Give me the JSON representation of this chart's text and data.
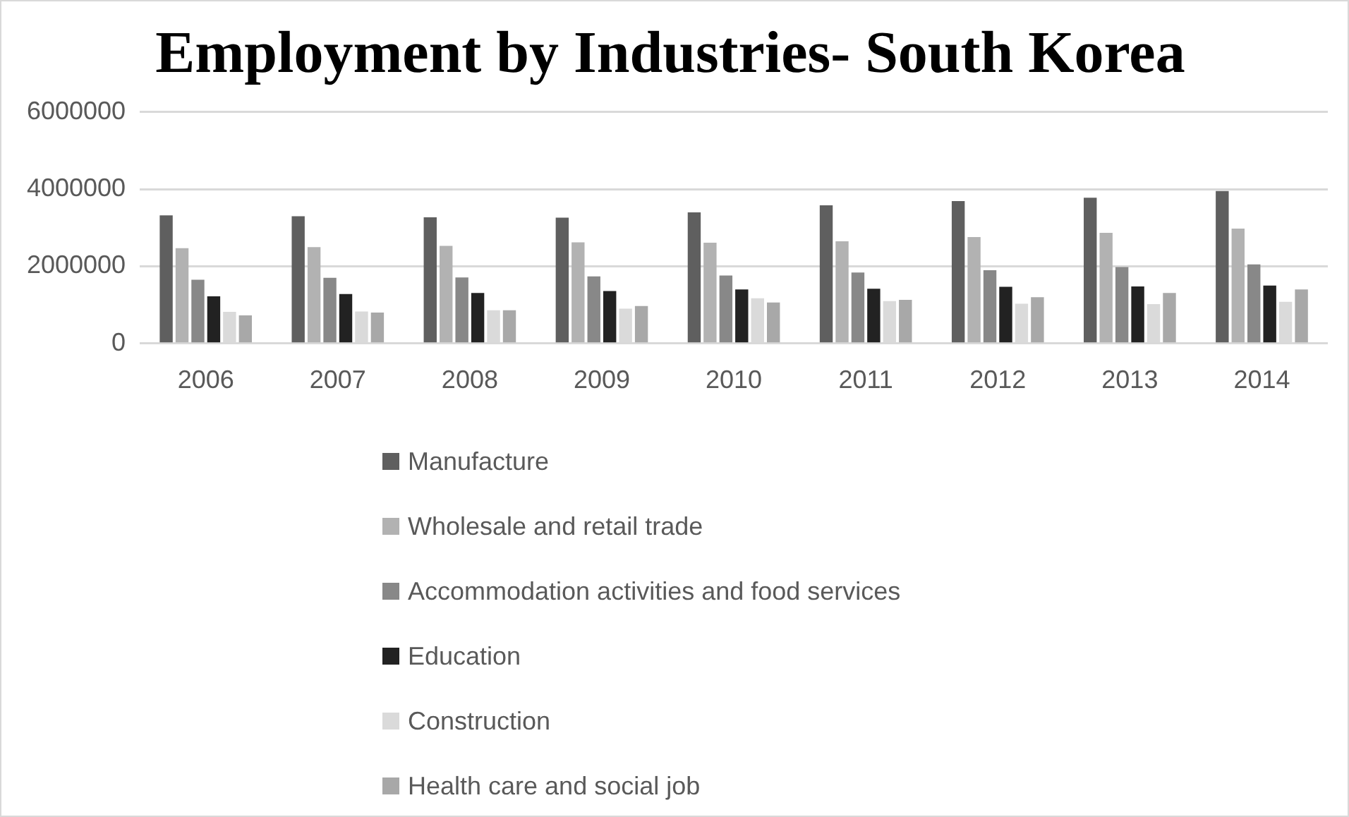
{
  "chart_data": {
    "type": "bar",
    "title": "Employment by Industries- South Korea",
    "categories": [
      "2006",
      "2007",
      "2008",
      "2009",
      "2010",
      "2011",
      "2012",
      "2013",
      "2014"
    ],
    "series": [
      {
        "name": "Manufacture",
        "color": "#5f5f5f",
        "values": [
          3320000,
          3300000,
          3270000,
          3260000,
          3400000,
          3580000,
          3690000,
          3780000,
          3950000
        ]
      },
      {
        "name": "Wholesale and retail trade",
        "color": "#b2b2b2",
        "values": [
          2470000,
          2500000,
          2530000,
          2620000,
          2610000,
          2650000,
          2760000,
          2870000,
          2980000
        ]
      },
      {
        "name": "Accommodation activities and food services",
        "color": "#888888",
        "values": [
          1650000,
          1700000,
          1710000,
          1740000,
          1760000,
          1840000,
          1900000,
          1980000,
          2050000
        ]
      },
      {
        "name": "Education",
        "color": "#222222",
        "values": [
          1220000,
          1280000,
          1310000,
          1360000,
          1400000,
          1420000,
          1470000,
          1480000,
          1500000
        ]
      },
      {
        "name": "Construction",
        "color": "#dadada",
        "values": [
          820000,
          830000,
          860000,
          900000,
          1170000,
          1100000,
          1030000,
          1020000,
          1080000
        ]
      },
      {
        "name": "Health care and social job",
        "color": "#a8a8a8",
        "values": [
          730000,
          800000,
          860000,
          970000,
          1060000,
          1130000,
          1200000,
          1310000,
          1400000
        ]
      }
    ],
    "ylim": [
      0,
      6000000
    ],
    "yticks": [
      0,
      2000000,
      4000000,
      6000000
    ],
    "grid": "y",
    "legend": "bottom"
  }
}
